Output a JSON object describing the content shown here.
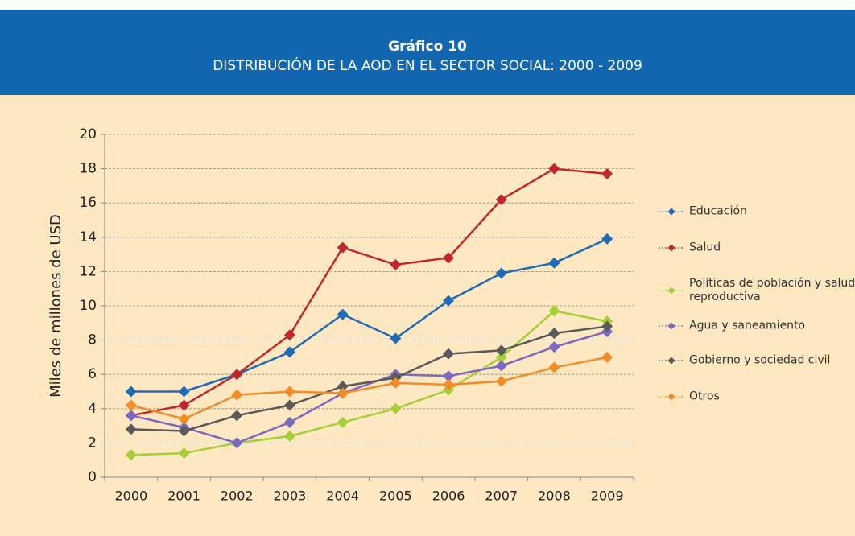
{
  "chart_data": {
    "type": "line",
    "title": "Gráfico 10",
    "subtitle": "DISTRIBUCIÓN DE LA AOD EN EL SECTOR SOCIAL: 2000 - 2009",
    "y_label": "Miles de millones de USD",
    "categories": [
      "2000",
      "2001",
      "2002",
      "2003",
      "2004",
      "2005",
      "2006",
      "2007",
      "2008",
      "2009"
    ],
    "series": [
      {
        "name": "Educación",
        "color": "#1f6bb5",
        "values": [
          5,
          5,
          6,
          7.3,
          9.5,
          8.1,
          10.3,
          11.9,
          12.5,
          13.9
        ]
      },
      {
        "name": "Salud",
        "color": "#c0272d",
        "values": [
          3.6,
          4.2,
          6,
          8.3,
          13.4,
          12.4,
          12.8,
          16.2,
          18,
          17.7
        ]
      },
      {
        "name": "Políticas de población y salud reproductiva",
        "color": "#a6ce39",
        "values": [
          1.3,
          1.4,
          2.0,
          2.4,
          3.2,
          4.0,
          5.1,
          7.0,
          9.7,
          9.1
        ]
      },
      {
        "name": "Agua y saneamiento",
        "color": "#7b68c0",
        "values": [
          3.6,
          2.9,
          2.0,
          3.2,
          4.9,
          6.0,
          5.9,
          6.5,
          7.6,
          8.5
        ]
      },
      {
        "name": "Gobierno y sociedad civil",
        "color": "#5a5a5a",
        "values": [
          2.8,
          2.7,
          3.6,
          4.2,
          5.3,
          5.8,
          7.2,
          7.4,
          8.4,
          8.8
        ]
      },
      {
        "name": "Otros",
        "color": "#f28c28",
        "values": [
          4.2,
          3.4,
          4.8,
          5.0,
          4.9,
          5.5,
          5.4,
          5.6,
          6.4,
          7.0
        ]
      }
    ],
    "ylim": [
      0,
      20
    ],
    "yticks": [
      0,
      2,
      4,
      6,
      8,
      10,
      12,
      14,
      16,
      18,
      20
    ],
    "grid": true,
    "legend": "right"
  }
}
